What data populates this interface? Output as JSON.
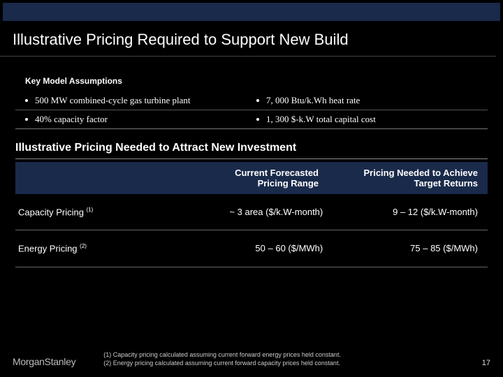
{
  "colors": {
    "page_bg": "#000000",
    "bar_bg": "#1a2a4a",
    "text": "#ffffff",
    "divider": "#666666",
    "footer_text": "#cccccc"
  },
  "title": "Illustrative Pricing Required to Support New Build",
  "assumptions": {
    "header": "Key Model Assumptions",
    "rows": [
      {
        "left": "500 MW combined-cycle gas turbine plant",
        "right": "7, 000 Btu/k.Wh heat rate"
      },
      {
        "left": "40% capacity factor",
        "right": "1, 300 $-k.W total capital cost"
      }
    ]
  },
  "subtitle": "Illustrative Pricing Needed to Attract New Investment",
  "pricing": {
    "headers": {
      "col2_line1": "Current Forecasted",
      "col2_line2": "Pricing Range",
      "col3_line1": "Pricing Needed to Achieve",
      "col3_line2": "Target Returns"
    },
    "rows": [
      {
        "label": "Capacity Pricing",
        "sup": "(1)",
        "current": "~ 3 area ($/k.W-month)",
        "needed": "9 – 12 ($/k.W-month)"
      },
      {
        "label": "Energy Pricing",
        "sup": "(2)",
        "current": "50 – 60 ($/MWh)",
        "needed": "75 – 85 ($/MWh)"
      }
    ]
  },
  "footnotes": {
    "f1": "(1)  Capacity pricing calculated assuming current forward energy prices held constant.",
    "f2": "(2)  Energy pricing calculated assuming current forward capacity prices held constant."
  },
  "logo": {
    "part1": "Morgan",
    "part2": "Stanley"
  },
  "page_number": "17"
}
